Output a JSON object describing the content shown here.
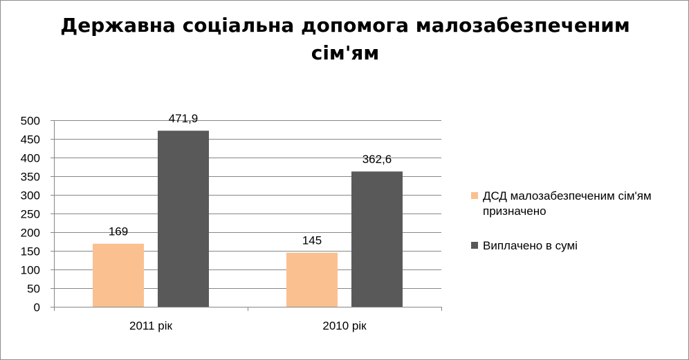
{
  "chart_data": {
    "type": "bar",
    "title_lines": [
      "Державна соціальна допомога малозабезпеченим",
      "сім'ям"
    ],
    "categories": [
      "2011 рік",
      "2010 рік"
    ],
    "series": [
      {
        "name": "ДСД малозабезпеченим сім'ям призначено",
        "values": [
          169,
          145
        ],
        "labels": [
          "169",
          "145"
        ],
        "color": "#FAC090"
      },
      {
        "name": "Виплачено в сумі",
        "values": [
          471.9,
          362.6
        ],
        "labels": [
          "471,9",
          "362,6"
        ],
        "color": "#595959"
      }
    ],
    "yticks": [
      0,
      50,
      100,
      150,
      200,
      250,
      300,
      350,
      400,
      450,
      500
    ],
    "ylim": [
      0,
      500
    ],
    "grid": true,
    "legend_position": "right",
    "xlabel": "",
    "ylabel": ""
  }
}
